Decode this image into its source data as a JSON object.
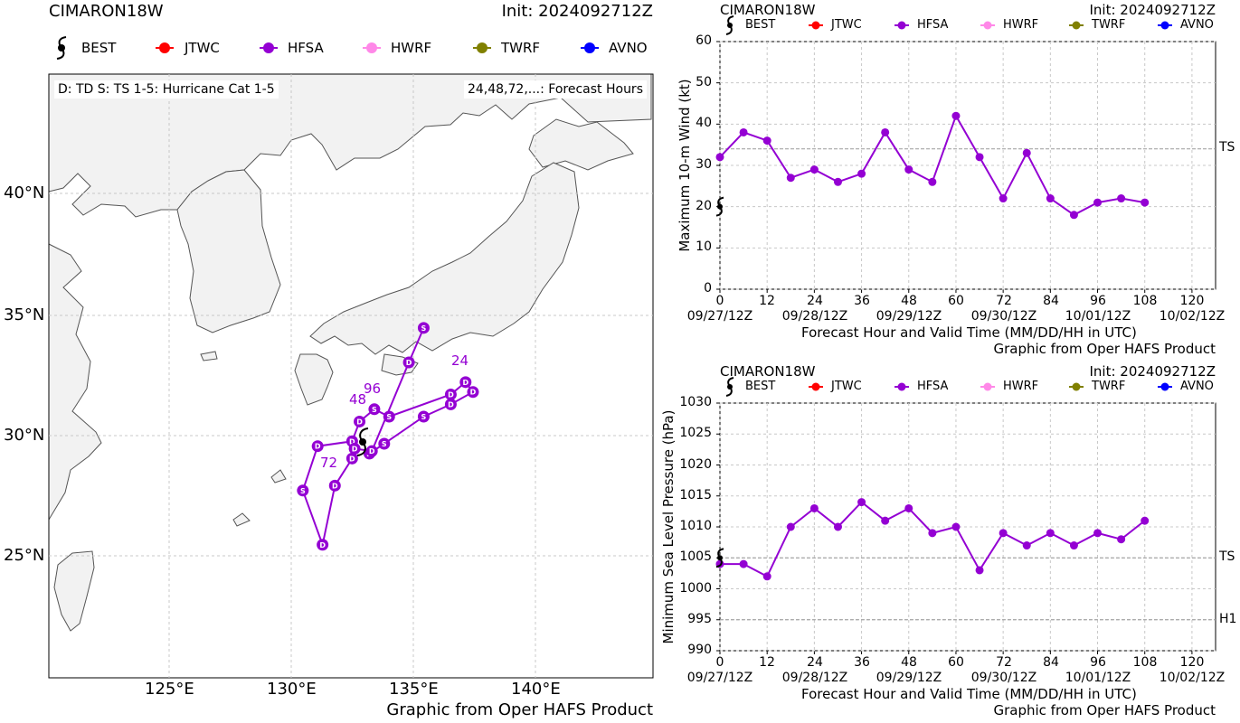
{
  "colors": {
    "BEST": "#000000",
    "JTWC": "#ff0000",
    "HFSA": "#9400d3",
    "HWRF": "#ff88e8",
    "TWRF": "#808000",
    "AVNO": "#0000ff",
    "land": "#f2f2f2",
    "grid": "#c8c8c8"
  },
  "map": {
    "storm": "CIMARON18W",
    "init": "Init: 2024092712Z",
    "legend": [
      "BEST",
      "JTWC",
      "HFSA",
      "HWRF",
      "TWRF",
      "AVNO"
    ],
    "note_left": "D: TD  S: TS  1-5: Hurricane Cat 1-5",
    "note_right": "24,48,72,...: Forecast Hours",
    "credit": "Graphic from Oper HAFS Product",
    "lon_ticks": [
      "125°E",
      "130°E",
      "135°E",
      "140°E"
    ],
    "lat_ticks": [
      "40°N",
      "35°N",
      "30°N",
      "25°N"
    ],
    "hour_labels": [
      "24",
      "48",
      "72",
      "96"
    ]
  },
  "wind": {
    "storm": "CIMARON18W",
    "init": "Init: 2024092712Z",
    "legend": [
      "BEST",
      "JTWC",
      "HFSA",
      "HWRF",
      "TWRF",
      "AVNO"
    ],
    "ylabel": "Maximum 10-m Wind (kt)",
    "xlabel": "Forecast Hour and Valid Time (MM/DD/HH in UTC)",
    "credit": "Graphic from Oper HAFS Product",
    "yticks": [
      "0",
      "10",
      "20",
      "30",
      "40",
      "50",
      "60"
    ],
    "xticks": [
      "0",
      "12",
      "24",
      "36",
      "48",
      "60",
      "72",
      "84",
      "96",
      "108",
      "120"
    ],
    "dates": [
      "09/27/12Z",
      "09/28/12Z",
      "09/29/12Z",
      "09/30/12Z",
      "10/01/12Z",
      "10/02/12Z"
    ],
    "ref": [
      "TS"
    ]
  },
  "pres": {
    "storm": "CIMARON18W",
    "init": "Init: 2024092712Z",
    "legend": [
      "BEST",
      "JTWC",
      "HFSA",
      "HWRF",
      "TWRF",
      "AVNO"
    ],
    "ylabel": "Minimum Sea Level Pressure (hPa)",
    "xlabel": "Forecast Hour and Valid Time (MM/DD/HH in UTC)",
    "credit": "Graphic from Oper HAFS Product",
    "yticks": [
      "990",
      "995",
      "1000",
      "1005",
      "1010",
      "1015",
      "1020",
      "1025",
      "1030"
    ],
    "xticks": [
      "0",
      "12",
      "24",
      "36",
      "48",
      "60",
      "72",
      "84",
      "96",
      "108",
      "120"
    ],
    "dates": [
      "09/27/12Z",
      "09/28/12Z",
      "09/29/12Z",
      "09/30/12Z",
      "10/01/12Z",
      "10/02/12Z"
    ],
    "ref": [
      "TS",
      "H1"
    ]
  },
  "chart_data": [
    {
      "type": "line",
      "title": "CIMARON18W",
      "xlabel": "Forecast Hour and Valid Time (MM/DD/HH in UTC)",
      "ylabel": "Maximum 10-m Wind (kt)",
      "xlim": [
        0,
        126
      ],
      "ylim": [
        0,
        60
      ],
      "reference_lines": [
        {
          "label": "TS",
          "y": 34
        }
      ],
      "series": [
        {
          "name": "HFSA",
          "x": [
            0,
            6,
            12,
            18,
            24,
            30,
            36,
            42,
            48,
            54,
            60,
            66,
            72,
            78,
            84,
            90,
            96,
            102,
            108
          ],
          "y": [
            32,
            38,
            36,
            27,
            29,
            26,
            28,
            38,
            29,
            26,
            42,
            32,
            22,
            33,
            22,
            18,
            21,
            22,
            21
          ]
        },
        {
          "name": "BEST",
          "x": [
            0
          ],
          "y": [
            20
          ]
        }
      ]
    },
    {
      "type": "line",
      "title": "CIMARON18W",
      "xlabel": "Forecast Hour and Valid Time (MM/DD/HH in UTC)",
      "ylabel": "Minimum Sea Level Pressure (hPa)",
      "xlim": [
        0,
        126
      ],
      "ylim": [
        990,
        1030
      ],
      "reference_lines": [
        {
          "label": "TS",
          "y": 1005
        },
        {
          "label": "H1",
          "y": 995
        }
      ],
      "series": [
        {
          "name": "HFSA",
          "x": [
            0,
            6,
            12,
            18,
            24,
            30,
            36,
            42,
            48,
            54,
            60,
            66,
            72,
            78,
            84,
            90,
            96,
            102,
            108
          ],
          "y": [
            1004,
            1004,
            1002,
            1010,
            1013,
            1010,
            1014,
            1011,
            1013,
            1009,
            1010,
            1003,
            1009,
            1007,
            1009,
            1007,
            1009,
            1008,
            1011
          ]
        },
        {
          "name": "BEST",
          "x": [
            0
          ],
          "y": [
            1005
          ]
        }
      ]
    },
    {
      "type": "scatter",
      "title": "CIMARON18W",
      "xlim": [
        120,
        144.5
      ],
      "ylim": [
        20.5,
        45
      ],
      "series": [
        {
          "name": "HFSA",
          "lon": [
            133.0,
            133.6,
            135.2,
            136.3,
            137.2,
            136.9,
            136.3,
            133.8,
            133.2,
            132.6,
            132.3,
            130.9,
            130.3,
            131.1,
            131.6,
            132.3,
            132.4,
            133.1,
            134.6,
            135.2
          ],
          "lat": [
            29.6,
            30.0,
            31.1,
            31.6,
            32.1,
            32.5,
            32.0,
            31.1,
            31.4,
            30.9,
            30.1,
            29.9,
            28.1,
            25.9,
            28.3,
            29.4,
            29.8,
            29.7,
            33.3,
            34.7
          ],
          "intensity": [
            "D",
            "S",
            "S",
            "D",
            "D",
            "D",
            "D",
            "S",
            "S",
            "D",
            "D",
            "D",
            "S",
            "D",
            "D",
            "D",
            "D",
            "D",
            "D",
            "S"
          ]
        },
        {
          "name": "BEST",
          "lon": [
            133.0
          ],
          "lat": [
            29.6
          ]
        }
      ]
    }
  ]
}
